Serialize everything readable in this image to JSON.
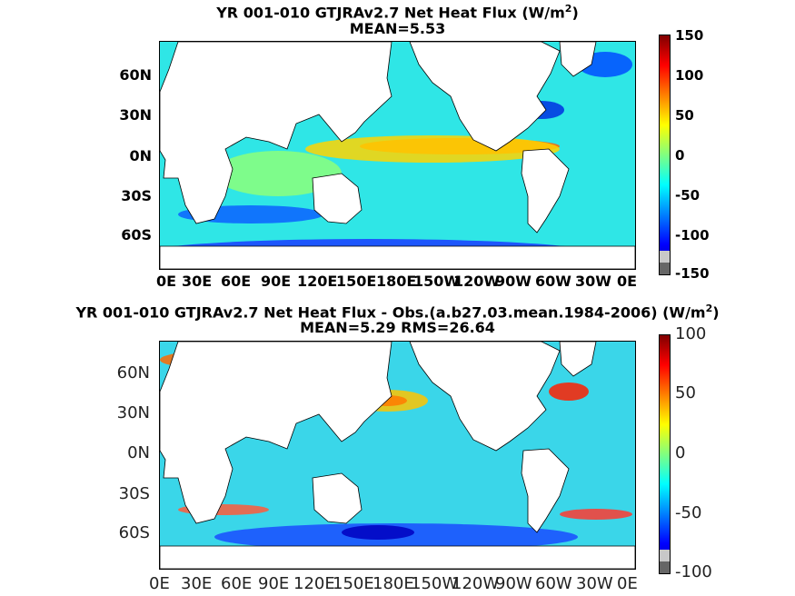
{
  "colors": {
    "land": "#ffffff",
    "jet": [
      "#00008f",
      "#0000ff",
      "#0080ff",
      "#00ffff",
      "#80ff80",
      "#ffff00",
      "#ff8000",
      "#ff0000",
      "#800000"
    ]
  },
  "chart_data": [
    {
      "type": "heatmap",
      "title": "YR 001-010 GTJRAv2.7  Net Heat Flux (W/m",
      "title_sup": "2",
      "title_end": ")",
      "subtitle": "MEAN=5.53",
      "xlabel": "",
      "ylabel": "",
      "x_ticks": [
        "0E",
        "30E",
        "60E",
        "90E",
        "120E",
        "150E",
        "180E",
        "150W",
        "120W",
        "90W",
        "60W",
        "30W",
        "0E"
      ],
      "y_ticks": [
        "60N",
        "30N",
        "0N",
        "30S",
        "60S"
      ],
      "colorbar": {
        "ticks": [
          "150",
          "100",
          "50",
          "0",
          "-50",
          "-100",
          "-150"
        ],
        "range": [
          -150,
          150
        ],
        "colormap": "jet"
      },
      "mean": 5.53
    },
    {
      "type": "heatmap",
      "title": "YR 001-010 GTJRAv2.7  Net Heat Flux - Obs.(a.b27.03.mean.1984-2006) (W/m",
      "title_sup": "2",
      "title_end": ")",
      "subtitle": "MEAN=5.29 RMS=26.64",
      "xlabel": "",
      "ylabel": "",
      "x_ticks": [
        "0E",
        "30E",
        "60E",
        "90E",
        "120E",
        "150E",
        "180E",
        "150W",
        "120W",
        "90W",
        "60W",
        "30W",
        "0E"
      ],
      "y_ticks": [
        "60N",
        "30N",
        "0N",
        "30S",
        "60S"
      ],
      "colorbar": {
        "ticks": [
          "100",
          "50",
          "0",
          "-50",
          "-100"
        ],
        "range": [
          -100,
          100
        ],
        "colormap": "jet"
      },
      "mean": 5.29,
      "rms": 26.64
    }
  ]
}
